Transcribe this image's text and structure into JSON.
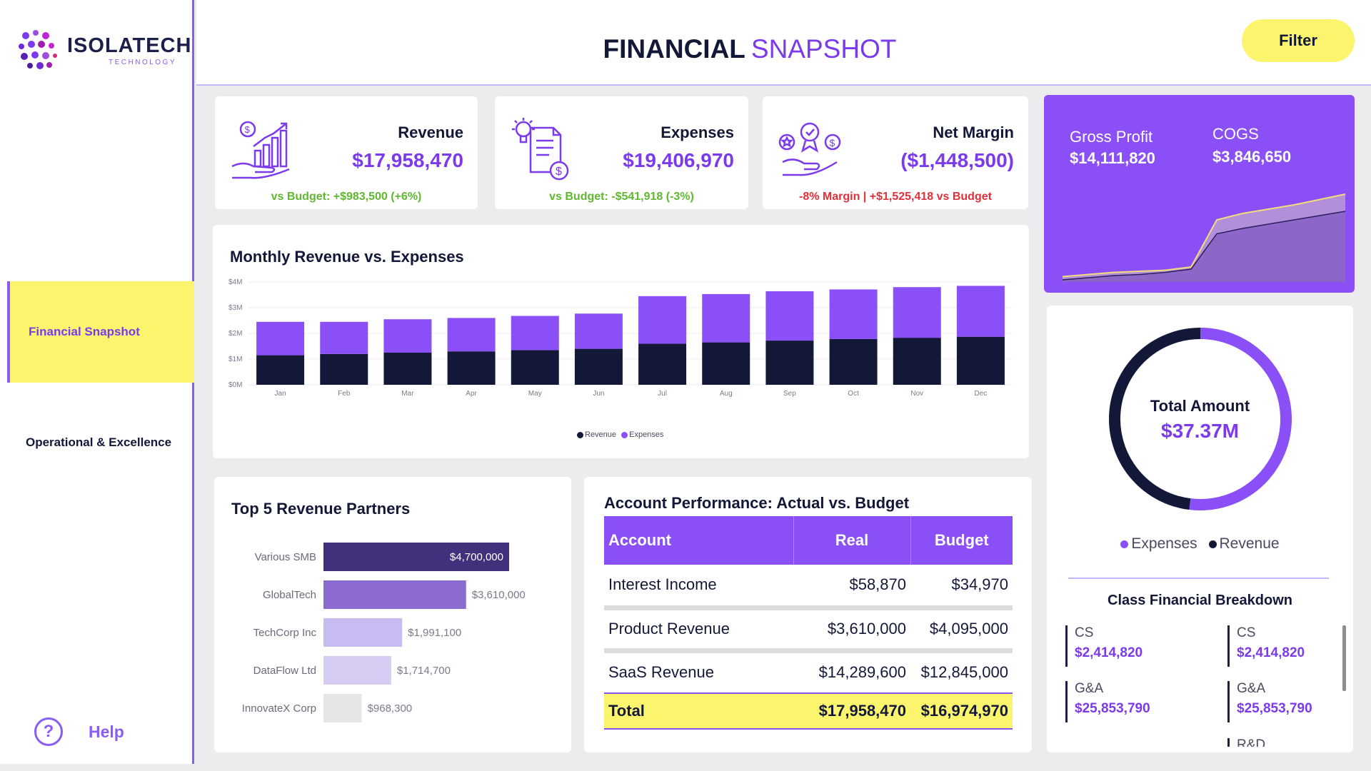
{
  "brand": {
    "name": "ISOLATECH",
    "tagline": "TECHNOLOGY"
  },
  "nav": {
    "items": [
      {
        "label": "Financial Snapshot",
        "active": true
      },
      {
        "label": "Operational & Excellence",
        "active": false
      }
    ],
    "help_label": "Help"
  },
  "header": {
    "title_bold": "FINANCIAL",
    "title_light": "SNAPSHOT",
    "filter_label": "Filter"
  },
  "kpis": {
    "revenue": {
      "label": "Revenue",
      "value": "$17,958,470",
      "sub": "vs Budget: +$983,500 (+6%)"
    },
    "expenses": {
      "label": "Expenses",
      "value": "$19,406,970",
      "sub": "vs Budget: -$541,918 (-3%)"
    },
    "net_margin": {
      "label": "Net Margin",
      "value": "($1,448,500)",
      "sub": "-8% Margin | +$1,525,418 vs Budget"
    }
  },
  "gross_profit": {
    "gp_label": "Gross Profit",
    "gp_value": "$14,111,820",
    "cogs_label": "COGS",
    "cogs_value": "$3,846,650"
  },
  "monthly": {
    "title": "Monthly Revenue vs. Expenses",
    "y_ticks": [
      "$0M",
      "$1M",
      "$2M",
      "$3M",
      "$4M"
    ],
    "legend": {
      "revenue": "Revenue",
      "expenses": "Expenses"
    }
  },
  "partners": {
    "title": "Top 5 Revenue Partners",
    "items": [
      {
        "name": "Various SMB",
        "value_label": "$4,700,000"
      },
      {
        "name": "GlobalTech",
        "value_label": "$3,610,000"
      },
      {
        "name": "TechCorp Inc",
        "value_label": "$1,991,100"
      },
      {
        "name": "DataFlow Ltd",
        "value_label": "$1,714,700"
      },
      {
        "name": "InnovateX Corp",
        "value_label": "$968,300"
      }
    ]
  },
  "account": {
    "title": "Account Performance: Actual vs. Budget",
    "headers": {
      "account": "Account",
      "real": "Real",
      "budget": "Budget"
    },
    "rows": [
      {
        "account": "Interest Income",
        "real": "$58,870",
        "budget": "$34,970"
      },
      {
        "account": "Product Revenue",
        "real": "$3,610,000",
        "budget": "$4,095,000"
      },
      {
        "account": "SaaS Revenue",
        "real": "$14,289,600",
        "budget": "$12,845,000"
      }
    ],
    "total": {
      "account": "Total",
      "real": "$17,958,470",
      "budget": "$16,974,970"
    }
  },
  "donut": {
    "label": "Total Amount",
    "value": "$37.37M",
    "legend": {
      "expenses": "Expenses",
      "revenue": "Revenue"
    }
  },
  "breakdown": {
    "title": "Class Financial Breakdown",
    "items": [
      {
        "label": "CS",
        "value": "$2,414,820"
      },
      {
        "label": "CS",
        "value": "$2,414,820"
      },
      {
        "label": "G&A",
        "value": "$25,853,790"
      },
      {
        "label": "G&A",
        "value": "$25,853,790"
      }
    ],
    "partial_label": "R&D"
  },
  "colors": {
    "purple": "#8a4ff7",
    "navy": "#141838",
    "yellow": "#fbf56e"
  },
  "chart_data": [
    {
      "type": "bar",
      "title": "Monthly Revenue vs. Expenses",
      "stacked": true,
      "categories": [
        "Jan",
        "Feb",
        "Mar",
        "Apr",
        "May",
        "Jun",
        "Jul",
        "Aug",
        "Sep",
        "Oct",
        "Nov",
        "Dec"
      ],
      "series": [
        {
          "name": "Revenue",
          "color": "#141838",
          "values": [
            1.15,
            1.2,
            1.25,
            1.3,
            1.35,
            1.4,
            1.6,
            1.65,
            1.72,
            1.78,
            1.83,
            1.87
          ]
        },
        {
          "name": "Expenses",
          "color": "#8a4ff7",
          "values": [
            1.3,
            1.25,
            1.3,
            1.3,
            1.33,
            1.37,
            1.85,
            1.88,
            1.92,
            1.93,
            1.97,
            1.98
          ]
        }
      ],
      "ylim": [
        0,
        4
      ],
      "ylabel": "",
      "xlabel": ""
    },
    {
      "type": "bar",
      "orientation": "horizontal",
      "title": "Top 5 Revenue Partners",
      "categories": [
        "Various SMB",
        "GlobalTech",
        "TechCorp Inc",
        "DataFlow Ltd",
        "InnovateX Corp"
      ],
      "values": [
        4700000,
        3610000,
        1991100,
        1714700,
        968300
      ],
      "colors": [
        "#42307d",
        "#8b6bd0",
        "#c8bbf2",
        "#d6ccf3",
        "#e6e6e6"
      ]
    },
    {
      "type": "pie",
      "title": "Total Amount",
      "categories": [
        "Expenses",
        "Revenue"
      ],
      "values": [
        19406970,
        17958470
      ],
      "colors": [
        "#8a4ff7",
        "#141838"
      ]
    },
    {
      "type": "area",
      "title": "Gross Profit vs COGS",
      "x": [
        1,
        2,
        3,
        4,
        5,
        6,
        7,
        8,
        9,
        10,
        11,
        12
      ],
      "series": [
        {
          "name": "Gross Profit",
          "values": [
            2,
            4,
            6,
            7,
            9,
            12,
            45,
            50,
            54,
            58,
            62,
            66
          ]
        },
        {
          "name": "COGS",
          "values": [
            5,
            7,
            9,
            10,
            11,
            14,
            58,
            64,
            68,
            72,
            77,
            82
          ]
        }
      ]
    }
  ]
}
